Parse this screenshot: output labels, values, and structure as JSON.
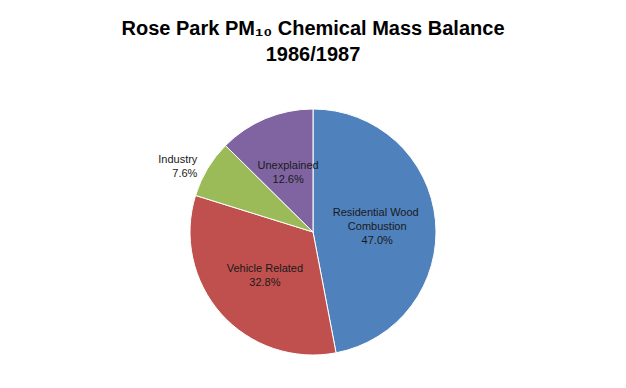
{
  "chart_data": {
    "type": "pie",
    "title": "Rose Park PM₁₀ Chemical Mass Balance\n1986/1987",
    "categories": [
      "Residential Wood Combustion",
      "Vehicle Related",
      "Industry",
      "Unexplained"
    ],
    "values": [
      47.0,
      32.8,
      7.6,
      12.6
    ],
    "value_labels": [
      "47.0%",
      "32.8%",
      "7.6%",
      "12.6%"
    ],
    "colors": [
      "#4f81bd",
      "#c0504d",
      "#9bbb59",
      "#8064a2"
    ],
    "data_labels": true
  }
}
